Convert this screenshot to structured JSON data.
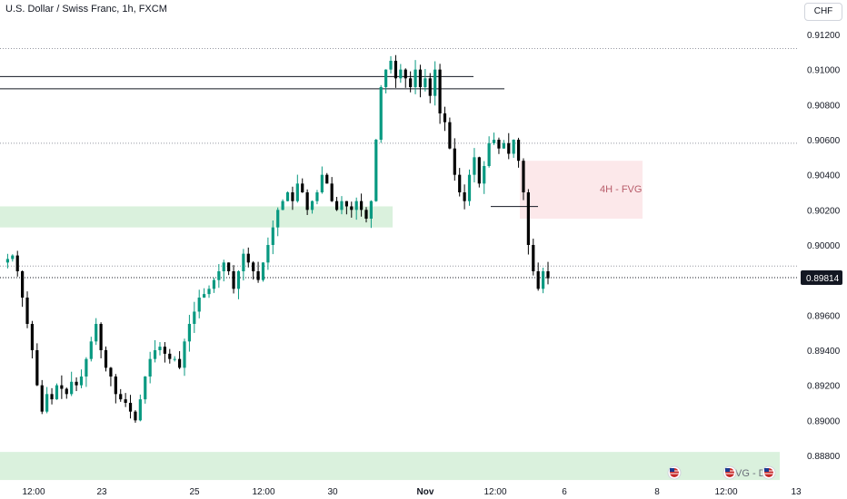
{
  "header": {
    "title": "U.S. Dollar / Swiss Franc, 1h, FXCM",
    "currency": "CHF"
  },
  "zones": {
    "fvg_label": "4H - FVG",
    "bottom_label": "VG - D"
  },
  "colors": {
    "up": "#089981",
    "down": "#000000",
    "fvg": "#f9d5d8",
    "demand": "#d6efd9",
    "price_tag": "#131722"
  },
  "chart_data": {
    "type": "candlestick",
    "title": "U.S. Dollar / Swiss Franc, 1h, FXCM",
    "y_ticks": [
      "0.91200",
      "0.91000",
      "0.90800",
      "0.90600",
      "0.90400",
      "0.90200",
      "0.90000",
      "0.89600",
      "0.89400",
      "0.89200",
      "0.89000",
      "0.88800"
    ],
    "y_range": [
      0.8874,
      0.9129
    ],
    "current_price": "0.89814",
    "x_ticks": [
      {
        "label": "12:00",
        "bold": false
      },
      {
        "label": "23",
        "bold": false
      },
      {
        "label": "25",
        "bold": false
      },
      {
        "label": "12:00",
        "bold": false
      },
      {
        "label": "30",
        "bold": false
      },
      {
        "label": "Nov",
        "bold": true
      },
      {
        "label": "12:00",
        "bold": false
      },
      {
        "label": "6",
        "bold": false
      },
      {
        "label": "8",
        "bold": false
      },
      {
        "label": "12:00",
        "bold": false
      },
      {
        "label": "13",
        "bold": false
      }
    ],
    "horizontal_levels": [
      0.9096,
      0.9089
    ],
    "dotted_levels": [
      0.9112,
      0.9058,
      0.8988
    ],
    "zones": [
      {
        "name": "4H - FVG",
        "y_top": 0.9048,
        "y_bottom": 0.9015
      },
      {
        "name": "demand",
        "y_top": 0.9022,
        "y_bottom": 0.901
      },
      {
        "name": "daily",
        "y_top": 0.8882,
        "y_bottom": 0.8866
      }
    ],
    "price_path": [
      0.899,
      0.8992,
      0.8994,
      0.8985,
      0.897,
      0.8955,
      0.894,
      0.892,
      0.8905,
      0.8915,
      0.8912,
      0.892,
      0.8918,
      0.8915,
      0.8922,
      0.892,
      0.8925,
      0.8935,
      0.8945,
      0.8955,
      0.894,
      0.893,
      0.8925,
      0.8915,
      0.8912,
      0.891,
      0.8905,
      0.89,
      0.8912,
      0.8925,
      0.8935,
      0.894,
      0.8942,
      0.8938,
      0.8935,
      0.8935,
      0.893,
      0.8945,
      0.8955,
      0.8962,
      0.897,
      0.8972,
      0.8975,
      0.898,
      0.8985,
      0.899,
      0.8985,
      0.8975,
      0.8985,
      0.8995,
      0.899,
      0.8985,
      0.898,
      0.899,
      0.9,
      0.901,
      0.902,
      0.9025,
      0.903,
      0.9025,
      0.9035,
      0.903,
      0.902,
      0.9025,
      0.903,
      0.904,
      0.9035,
      0.9025,
      0.902,
      0.9025,
      0.9022,
      0.902,
      0.9025,
      0.902,
      0.9015,
      0.9025,
      0.906,
      0.909,
      0.91,
      0.9105,
      0.9095,
      0.91,
      0.9095,
      0.909,
      0.91,
      0.909,
      0.9095,
      0.9085,
      0.91,
      0.9075,
      0.907,
      0.9055,
      0.904,
      0.903,
      0.9025,
      0.904,
      0.905,
      0.9035,
      0.9045,
      0.9058,
      0.906,
      0.9055,
      0.9058,
      0.9052,
      0.906,
      0.9048,
      0.903,
      0.9,
      0.8985,
      0.8975,
      0.8985,
      0.8981
    ]
  }
}
